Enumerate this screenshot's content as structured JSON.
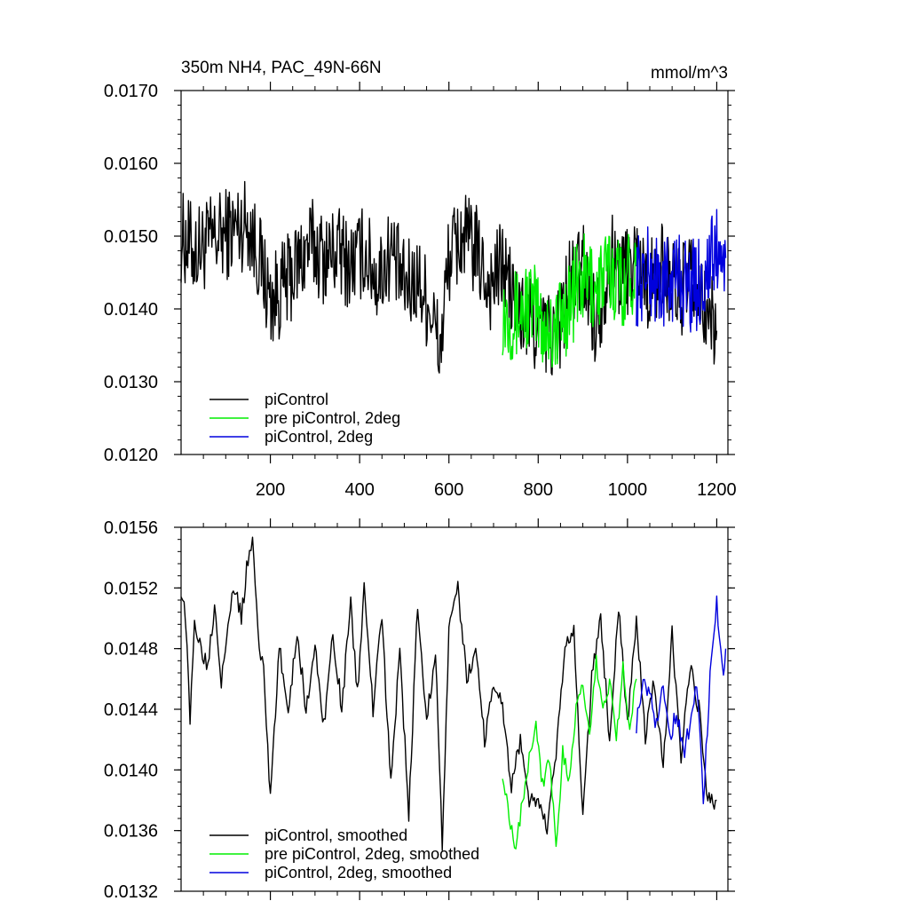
{
  "chart_data": [
    {
      "type": "line",
      "title": "350m NH4, PAC_49N-66N",
      "units": "mmol/m^3",
      "xlim": [
        0,
        1225
      ],
      "ylim": [
        0.012,
        0.017
      ],
      "yticks": [
        "0.0170",
        "0.0160",
        "0.0150",
        "0.0140",
        "0.0130",
        "0.0120"
      ],
      "ytick_values": [
        0.017,
        0.016,
        0.015,
        0.014,
        0.013,
        0.012
      ],
      "xticks": [
        "200",
        "400",
        "600",
        "800",
        "1000",
        "1200"
      ],
      "xtick_values": [
        200,
        400,
        600,
        800,
        1000,
        1200
      ],
      "legend_position": "bottom-left",
      "series": [
        {
          "name": "piControl",
          "color": "#000000",
          "x": [
            0,
            30,
            60,
            90,
            120,
            150,
            180,
            200,
            230,
            260,
            290,
            320,
            350,
            380,
            410,
            440,
            470,
            500,
            530,
            560,
            580,
            600,
            630,
            660,
            690,
            720,
            750,
            780,
            810,
            840,
            870,
            900,
            930,
            960,
            990,
            1020,
            1050,
            1080,
            1110,
            1140,
            1170,
            1200
          ],
          "y": [
            0.015,
            0.0148,
            0.0149,
            0.015,
            0.0151,
            0.0152,
            0.0146,
            0.0141,
            0.0143,
            0.0146,
            0.0149,
            0.0147,
            0.0148,
            0.0146,
            0.0148,
            0.0144,
            0.0148,
            0.0143,
            0.0144,
            0.014,
            0.0134,
            0.0147,
            0.015,
            0.0148,
            0.0143,
            0.0146,
            0.014,
            0.0138,
            0.0137,
            0.0136,
            0.0143,
            0.0146,
            0.0138,
            0.0147,
            0.0145,
            0.0147,
            0.0143,
            0.0146,
            0.0142,
            0.0144,
            0.014,
            0.0137
          ]
        },
        {
          "name": "pre piControl, 2deg",
          "color": "#00ee00",
          "x": [
            720,
            750,
            780,
            810,
            840,
            870,
            900,
            930,
            960,
            990,
            1020
          ],
          "y": [
            0.014,
            0.0139,
            0.0141,
            0.0138,
            0.0137,
            0.0141,
            0.0144,
            0.0143,
            0.0145,
            0.0144,
            0.0146
          ]
        },
        {
          "name": "piControl, 2deg",
          "color": "#0000dd",
          "x": [
            1020,
            1050,
            1080,
            1110,
            1140,
            1170,
            1200,
            1220
          ],
          "y": [
            0.0144,
            0.0145,
            0.0143,
            0.0145,
            0.0143,
            0.0144,
            0.0148,
            0.0147
          ]
        }
      ]
    },
    {
      "type": "line",
      "xlim": [
        0,
        1225
      ],
      "ylim": [
        0.0132,
        0.0156
      ],
      "yticks": [
        "0.0156",
        "0.0152",
        "0.0148",
        "0.0144",
        "0.0140",
        "0.0136",
        "0.0132"
      ],
      "ytick_values": [
        0.0156,
        0.0152,
        0.0148,
        0.0144,
        0.014,
        0.0136,
        0.0132
      ],
      "xtick_values": [
        200,
        400,
        600,
        800,
        1000,
        1200
      ],
      "legend_position": "bottom-left",
      "series": [
        {
          "name": "piControl, smoothed",
          "color": "#000000",
          "x": [
            0,
            10,
            20,
            30,
            45,
            60,
            75,
            90,
            105,
            120,
            135,
            150,
            160,
            175,
            185,
            200,
            220,
            240,
            260,
            280,
            300,
            320,
            340,
            360,
            380,
            395,
            410,
            430,
            450,
            470,
            490,
            510,
            530,
            550,
            570,
            585,
            600,
            620,
            640,
            660,
            680,
            700,
            720,
            740,
            760,
            780,
            800,
            820,
            840,
            860,
            880,
            900,
            920,
            940,
            960,
            980,
            1000,
            1020,
            1040,
            1060,
            1080,
            1100,
            1120,
            1140,
            1160,
            1180,
            1200
          ],
          "y": [
            0.0152,
            0.015,
            0.0143,
            0.015,
            0.0148,
            0.0147,
            0.0151,
            0.0146,
            0.015,
            0.0152,
            0.015,
            0.0154,
            0.0155,
            0.0148,
            0.0147,
            0.0138,
            0.0148,
            0.0144,
            0.0149,
            0.0144,
            0.0148,
            0.0143,
            0.0149,
            0.0144,
            0.0151,
            0.0145,
            0.0152,
            0.0144,
            0.015,
            0.0139,
            0.0148,
            0.0137,
            0.0151,
            0.0143,
            0.0148,
            0.0135,
            0.0149,
            0.0152,
            0.0146,
            0.0148,
            0.0142,
            0.0146,
            0.0144,
            0.0139,
            0.0142,
            0.0138,
            0.0138,
            0.0136,
            0.0141,
            0.0148,
            0.0149,
            0.0137,
            0.0146,
            0.015,
            0.0142,
            0.0151,
            0.0143,
            0.015,
            0.0142,
            0.0146,
            0.014,
            0.0149,
            0.0141,
            0.0147,
            0.0144,
            0.0138,
            0.0138
          ]
        },
        {
          "name": "pre piControl, 2deg, smoothed",
          "color": "#00ee00",
          "x": [
            720,
            735,
            750,
            765,
            780,
            795,
            810,
            825,
            840,
            855,
            870,
            885,
            900,
            915,
            930,
            945,
            960,
            975,
            990,
            1005,
            1020
          ],
          "y": [
            0.014,
            0.0137,
            0.0135,
            0.0138,
            0.0141,
            0.0143,
            0.0139,
            0.0141,
            0.0135,
            0.0141,
            0.0139,
            0.0144,
            0.0146,
            0.0142,
            0.0147,
            0.0144,
            0.0146,
            0.0142,
            0.0147,
            0.0143,
            0.0146
          ]
        },
        {
          "name": "piControl, 2deg, smoothed",
          "color": "#0000dd",
          "x": [
            1020,
            1035,
            1050,
            1065,
            1080,
            1095,
            1110,
            1125,
            1140,
            1155,
            1170,
            1185,
            1200,
            1215,
            1220
          ],
          "y": [
            0.0143,
            0.0146,
            0.0145,
            0.0143,
            0.0146,
            0.0142,
            0.0144,
            0.0141,
            0.0143,
            0.0146,
            0.0138,
            0.0146,
            0.0151,
            0.0146,
            0.0148
          ]
        }
      ]
    }
  ]
}
